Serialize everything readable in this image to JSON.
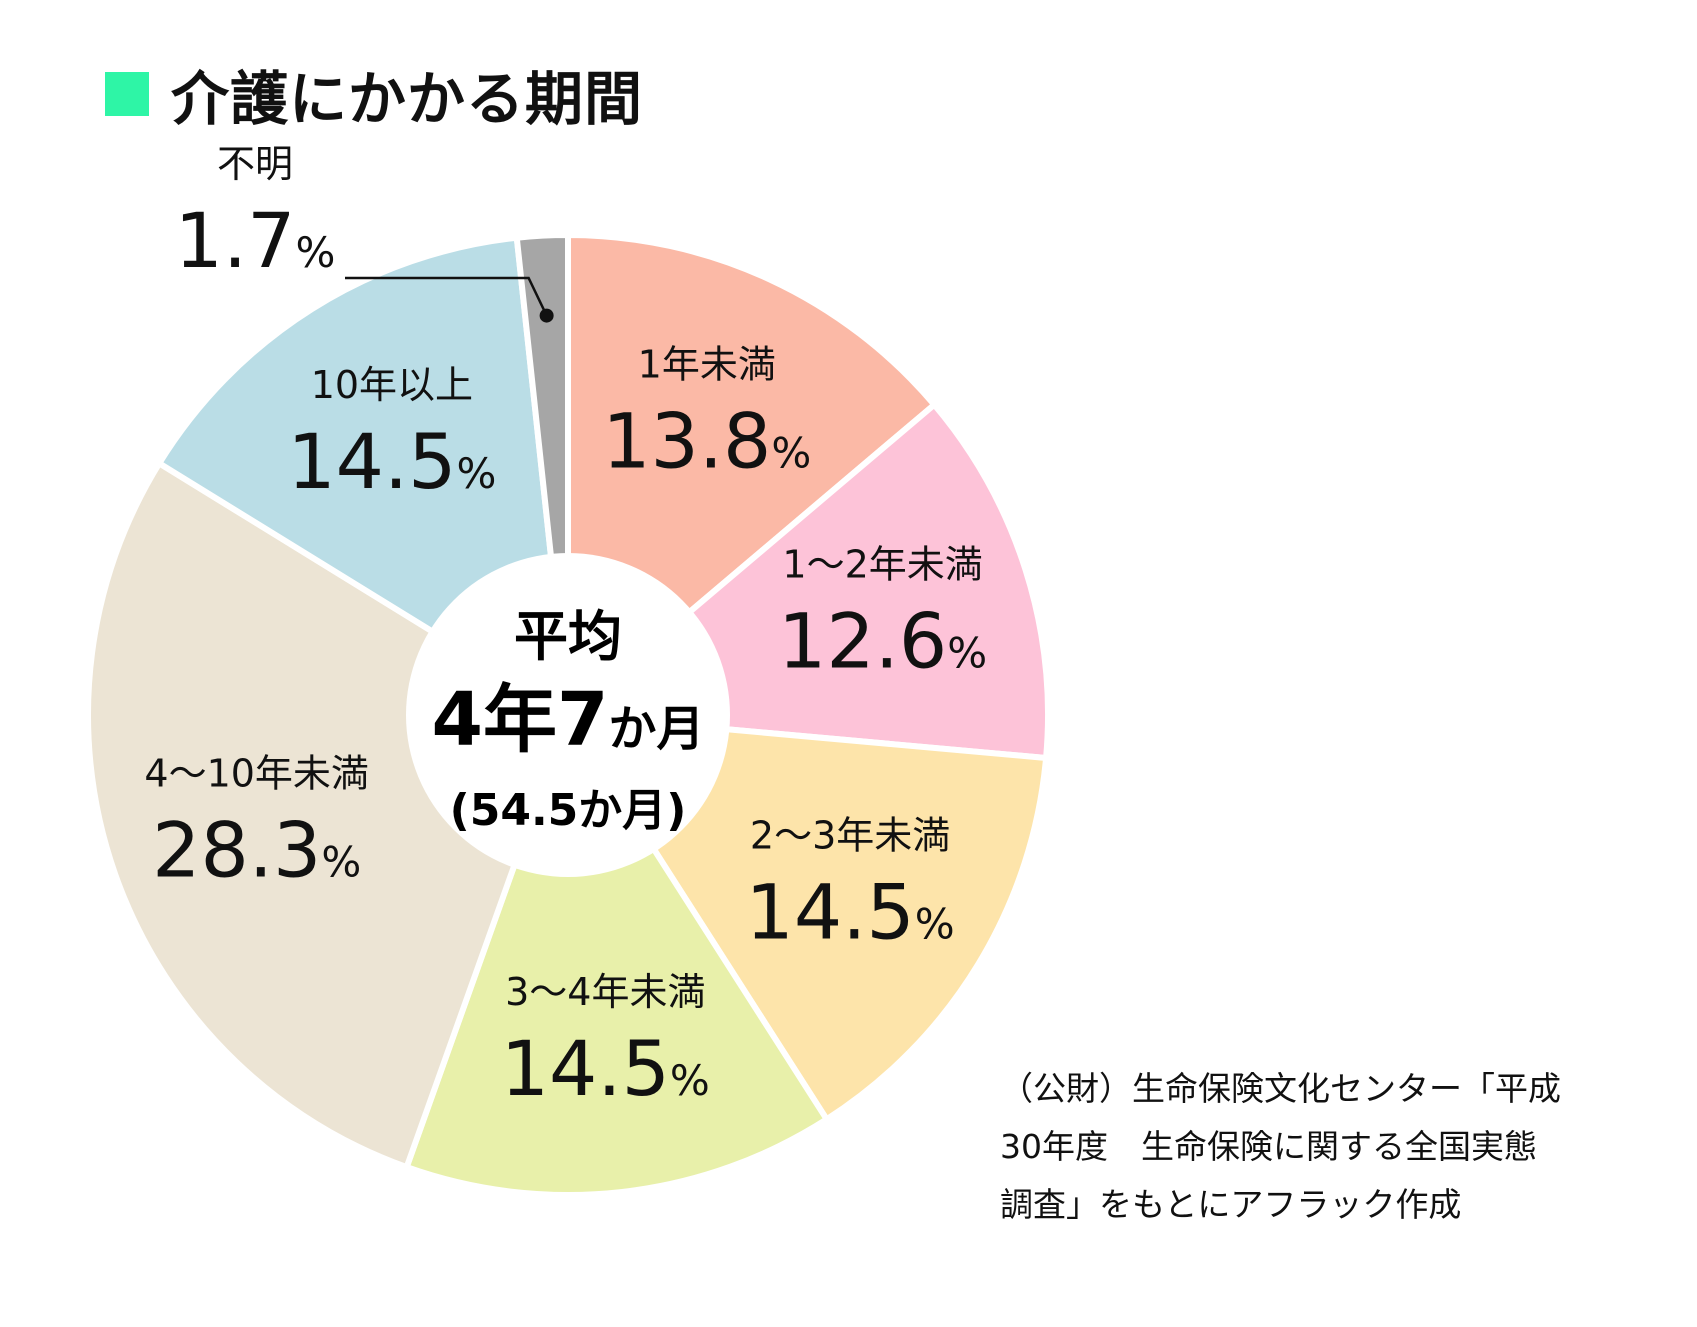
{
  "title": "介護にかかる期間",
  "colors": {
    "title_marker": "#2ef5a6",
    "outline": "#ffffff",
    "leader_line": "#111111"
  },
  "center": {
    "label": "平均",
    "value_main": "4年7",
    "value_unit": "か月",
    "value_sub": "(54.5か月)"
  },
  "source": {
    "line1": "（公財）生命保険文化センター「平成",
    "line2": "30年度　生命保険に関する全国実態",
    "line3": "調査」をもとにアフラック作成"
  },
  "chart_data": {
    "type": "pie",
    "variant": "donut",
    "title": "介護にかかる期間",
    "unit": "%",
    "start_angle_deg": 0,
    "direction": "clockwise",
    "slices": [
      {
        "label": "1年未満",
        "value": 13.8,
        "display": "13.8",
        "color": "#fbb9a6"
      },
      {
        "label": "1～2年未満",
        "value": 12.6,
        "display": "12.6",
        "color": "#fdc3d8"
      },
      {
        "label": "2～3年未満",
        "value": 14.5,
        "display": "14.5",
        "color": "#fde4aa"
      },
      {
        "label": "3～4年未満",
        "value": 14.5,
        "display": "14.5",
        "color": "#e8f0aa"
      },
      {
        "label": "4～10年未満",
        "value": 28.3,
        "display": "28.3",
        "color": "#ece4d4"
      },
      {
        "label": "10年以上",
        "value": 14.5,
        "display": "14.5",
        "color": "#badde6"
      },
      {
        "label": "不明",
        "value": 1.7,
        "display": "1.7",
        "color": "#a6a6a6",
        "label_outside": true
      }
    ]
  }
}
